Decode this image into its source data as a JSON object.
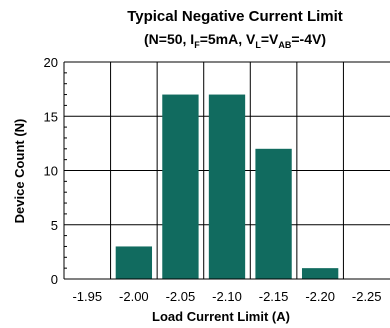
{
  "chart_data": {
    "type": "bar",
    "title": "Typical Negative Current Limit",
    "subtitle": {
      "prefix": "(N=50, I",
      "sub1": "F",
      "mid1": "=5mA, V",
      "sub2": "L",
      "mid2": "=V",
      "sub3": "AB",
      "suffix": "=-4V)"
    },
    "xlabel": "Load Current Limit (A)",
    "ylabel": "Device Count (N)",
    "categories": [
      "-1.95",
      "-2.00",
      "-2.05",
      "-2.10",
      "-2.15",
      "-2.20",
      "-2.25"
    ],
    "values": [
      0,
      3,
      17,
      17,
      12,
      1,
      0
    ],
    "ylim": [
      0,
      20
    ],
    "yticks": [
      "0",
      "5",
      "10",
      "15",
      "20"
    ],
    "grid": true,
    "colors": {
      "bar": "#116b5f",
      "grid": "#000000",
      "axis": "#000000"
    }
  }
}
